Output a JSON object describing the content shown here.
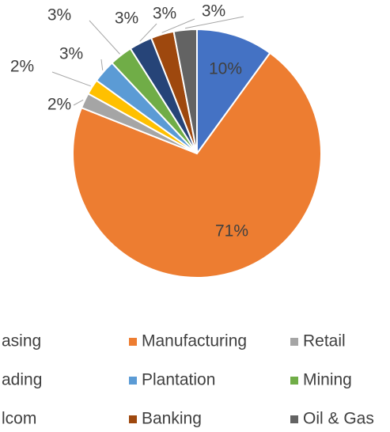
{
  "chart_data": {
    "type": "pie",
    "categories": [
      "asing",
      "Manufacturing",
      "Retail",
      "ading",
      "Plantation",
      "Mining",
      "lcom",
      "Banking",
      "Oil & Gas"
    ],
    "values": [
      10,
      71,
      2,
      2,
      3,
      3,
      3,
      3,
      3
    ],
    "value_labels": [
      "10%",
      "71%",
      "2%",
      "2%",
      "3%",
      "3%",
      "3%",
      "3%",
      "3%"
    ],
    "colors": [
      "#4472c4",
      "#ed7d31",
      "#a5a5a5",
      "#ffc000",
      "#5b9bd5",
      "#70ad47",
      "#264478",
      "#9e480e",
      "#636363"
    ]
  }
}
